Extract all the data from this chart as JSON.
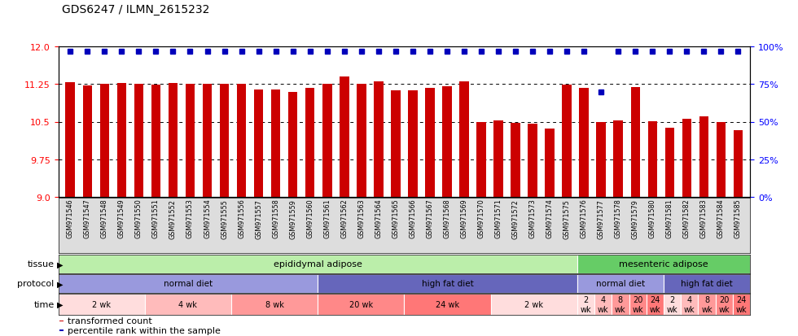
{
  "title": "GDS6247 / ILMN_2615232",
  "samples": [
    "GSM971546",
    "GSM971547",
    "GSM971548",
    "GSM971549",
    "GSM971550",
    "GSM971551",
    "GSM971552",
    "GSM971553",
    "GSM971554",
    "GSM971555",
    "GSM971556",
    "GSM971557",
    "GSM971558",
    "GSM971559",
    "GSM971560",
    "GSM971561",
    "GSM971562",
    "GSM971563",
    "GSM971564",
    "GSM971565",
    "GSM971566",
    "GSM971567",
    "GSM971568",
    "GSM971569",
    "GSM971570",
    "GSM971571",
    "GSM971572",
    "GSM971573",
    "GSM971574",
    "GSM971575",
    "GSM971576",
    "GSM971577",
    "GSM971578",
    "GSM971579",
    "GSM971580",
    "GSM971581",
    "GSM971582",
    "GSM971583",
    "GSM971584",
    "GSM971585"
  ],
  "bar_values": [
    11.29,
    11.22,
    11.26,
    11.27,
    11.26,
    11.24,
    11.27,
    11.25,
    11.25,
    11.26,
    11.25,
    11.14,
    11.14,
    11.1,
    11.18,
    11.25,
    11.4,
    11.25,
    11.31,
    11.13,
    11.13,
    11.17,
    11.21,
    11.3,
    10.5,
    10.52,
    10.47,
    10.46,
    10.36,
    11.24,
    11.18,
    10.5,
    10.53,
    11.19,
    10.51,
    10.38,
    10.56,
    10.6,
    10.49,
    10.33
  ],
  "percentile_values": [
    97,
    97,
    97,
    97,
    97,
    97,
    97,
    97,
    97,
    97,
    97,
    97,
    97,
    97,
    97,
    97,
    97,
    97,
    97,
    97,
    97,
    97,
    97,
    97,
    97,
    97,
    97,
    97,
    97,
    97,
    97,
    70,
    97,
    97,
    97,
    97,
    97,
    97,
    97,
    97
  ],
  "bar_color": "#CC0000",
  "dot_color": "#0000BB",
  "ylim_left": [
    9.0,
    12.0
  ],
  "ylim_right": [
    0,
    100
  ],
  "yticks_left": [
    9.0,
    9.75,
    10.5,
    11.25,
    12.0
  ],
  "yticks_right_vals": [
    0,
    25,
    50,
    75,
    100
  ],
  "yticks_right_labels": [
    "0%",
    "25%",
    "50%",
    "75%",
    "100%"
  ],
  "gridlines": [
    9.75,
    10.5,
    11.25
  ],
  "tissue_sections": [
    {
      "label": "epididymal adipose",
      "start": 0,
      "end": 29,
      "color": "#BBEEAA"
    },
    {
      "label": "mesenteric adipose",
      "start": 30,
      "end": 39,
      "color": "#66CC66"
    }
  ],
  "protocol_sections": [
    {
      "label": "normal diet",
      "start": 0,
      "end": 14,
      "color": "#9999DD"
    },
    {
      "label": "high fat diet",
      "start": 15,
      "end": 29,
      "color": "#6666BB"
    },
    {
      "label": "normal diet",
      "start": 30,
      "end": 34,
      "color": "#9999DD"
    },
    {
      "label": "high fat diet",
      "start": 35,
      "end": 39,
      "color": "#6666BB"
    }
  ],
  "time_sections": [
    {
      "label": "2 wk",
      "start": 0,
      "end": 4,
      "color": "#FFDDDD"
    },
    {
      "label": "4 wk",
      "start": 5,
      "end": 9,
      "color": "#FFBBBB"
    },
    {
      "label": "8 wk",
      "start": 10,
      "end": 14,
      "color": "#FF9999"
    },
    {
      "label": "20 wk",
      "start": 15,
      "end": 19,
      "color": "#FF8888"
    },
    {
      "label": "24 wk",
      "start": 20,
      "end": 24,
      "color": "#FF7777"
    },
    {
      "label": "2 wk",
      "start": 25,
      "end": 29,
      "color": "#FFDDDD"
    },
    {
      "label": "2\nwk",
      "start": 30,
      "end": 30,
      "color": "#FFDDDD"
    },
    {
      "label": "4\nwk",
      "start": 31,
      "end": 31,
      "color": "#FFBBBB"
    },
    {
      "label": "8\nwk",
      "start": 32,
      "end": 32,
      "color": "#FF9999"
    },
    {
      "label": "20\nwk",
      "start": 33,
      "end": 33,
      "color": "#FF8888"
    },
    {
      "label": "24\nwk",
      "start": 34,
      "end": 34,
      "color": "#FF7777"
    },
    {
      "label": "2\nwk",
      "start": 35,
      "end": 35,
      "color": "#FFDDDD"
    },
    {
      "label": "4\nwk",
      "start": 36,
      "end": 36,
      "color": "#FFBBBB"
    },
    {
      "label": "8\nwk",
      "start": 37,
      "end": 37,
      "color": "#FF9999"
    },
    {
      "label": "20\nwk",
      "start": 38,
      "end": 38,
      "color": "#FF8888"
    },
    {
      "label": "24\nwk",
      "start": 39,
      "end": 39,
      "color": "#FF7777"
    }
  ],
  "legend_items": [
    {
      "label": "transformed count",
      "color": "#CC0000"
    },
    {
      "label": "percentile rank within the sample",
      "color": "#0000BB"
    }
  ],
  "bg_color": "#FFFFFF",
  "xtick_bg_color": "#DDDDDD"
}
